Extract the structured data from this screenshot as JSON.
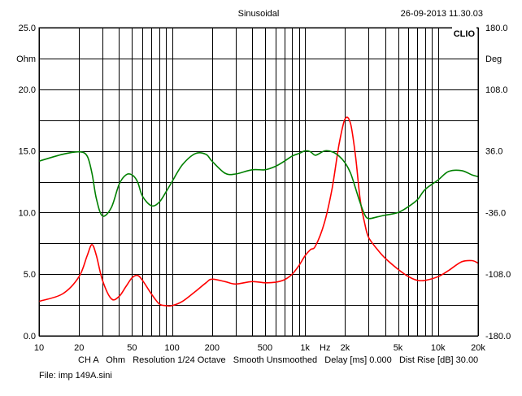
{
  "header": {
    "title": "Sinusoidal",
    "timestamp": "26-09-2013 11.30.03",
    "brand": "CLIO"
  },
  "footer": {
    "settings_line": "CH A   Ohm   Resolution 1/24 Octave   Smooth Unsmoothed   Delay [ms] 0.000   Dist Rise [dB] 30.00",
    "file_line": "File: imp 149A.sini"
  },
  "colors": {
    "impedance": "#ff0000",
    "phase": "#008000",
    "grid": "#000000",
    "background": "#ffffff"
  },
  "chart_data": {
    "type": "line",
    "title": "Sinusoidal",
    "x_scale": "log",
    "xlim": [
      10,
      20000
    ],
    "x_ticks": [
      10,
      20,
      50,
      100,
      200,
      500,
      1000,
      2000,
      5000,
      10000,
      20000
    ],
    "x_tick_labels": [
      "10",
      "20",
      "50",
      "100",
      "200",
      "500",
      "1k",
      "2k",
      "5k",
      "10k",
      "20k"
    ],
    "x_unit_label": "Hz",
    "x_unit_at": 1414,
    "y_left": {
      "label": "Ohm",
      "ylim": [
        0,
        25
      ],
      "ticks": [
        0,
        5,
        10,
        15,
        20,
        25
      ],
      "tick_labels": [
        "0.0",
        "5.0",
        "10.0",
        "15.0",
        "20.0",
        "25.0"
      ]
    },
    "y_right": {
      "label": "Deg",
      "ylim": [
        -180,
        180
      ],
      "ticks": [
        -180,
        -108,
        -36,
        36,
        108,
        180
      ],
      "tick_labels": [
        "-180.0",
        "-108.0",
        "-36.0",
        "36.0",
        "108.0",
        "180.0"
      ]
    },
    "grid": true,
    "series": [
      {
        "key": "impedance",
        "axis": "left",
        "color": "#ff0000",
        "x": [
          10,
          15,
          20,
          23,
          25,
          27,
          30,
          35,
          40,
          45,
          50,
          55,
          60,
          70,
          80,
          90,
          100,
          120,
          150,
          180,
          200,
          250,
          300,
          400,
          500,
          600,
          700,
          800,
          900,
          1000,
          1100,
          1200,
          1400,
          1600,
          1800,
          2000,
          2200,
          2400,
          2600,
          2800,
          3000,
          3500,
          4000,
          5000,
          6000,
          7000,
          8000,
          10000,
          12000,
          15000,
          18000,
          20000
        ],
        "y": [
          2.8,
          3.4,
          4.8,
          6.5,
          7.4,
          6.5,
          4.5,
          3.0,
          3.2,
          4.0,
          4.7,
          4.9,
          4.5,
          3.4,
          2.6,
          2.45,
          2.45,
          2.8,
          3.6,
          4.3,
          4.6,
          4.4,
          4.2,
          4.4,
          4.3,
          4.35,
          4.55,
          5.0,
          5.7,
          6.5,
          7.0,
          7.3,
          9.2,
          12.0,
          15.5,
          17.6,
          17.2,
          14.5,
          11.0,
          9.2,
          8.0,
          7.0,
          6.3,
          5.4,
          4.8,
          4.5,
          4.5,
          4.8,
          5.3,
          6.0,
          6.1,
          5.9
        ]
      },
      {
        "key": "phase",
        "axis": "right",
        "color": "#008000",
        "x": [
          10,
          15,
          20,
          23,
          25,
          27,
          30,
          35,
          40,
          45,
          50,
          55,
          60,
          70,
          80,
          90,
          100,
          120,
          150,
          180,
          200,
          250,
          300,
          400,
          500,
          600,
          700,
          800,
          900,
          1000,
          1100,
          1200,
          1400,
          1600,
          1800,
          2000,
          2200,
          2400,
          2600,
          2800,
          3000,
          3500,
          4000,
          5000,
          6000,
          7000,
          8000,
          10000,
          12000,
          15000,
          18000,
          20000
        ],
        "y": [
          24,
          32,
          35,
          30,
          10,
          -20,
          -40,
          -30,
          -3,
          8,
          8,
          0,
          -17,
          -28,
          -24,
          -12,
          0,
          20,
          33,
          32,
          24,
          10,
          9,
          14,
          14,
          18,
          24,
          30,
          33,
          36,
          35,
          31,
          36,
          35,
          30,
          22,
          10,
          -8,
          -25,
          -38,
          -43,
          -41,
          -39,
          -36,
          -29,
          -21,
          -9,
          2,
          12,
          13,
          8,
          6
        ]
      }
    ]
  }
}
